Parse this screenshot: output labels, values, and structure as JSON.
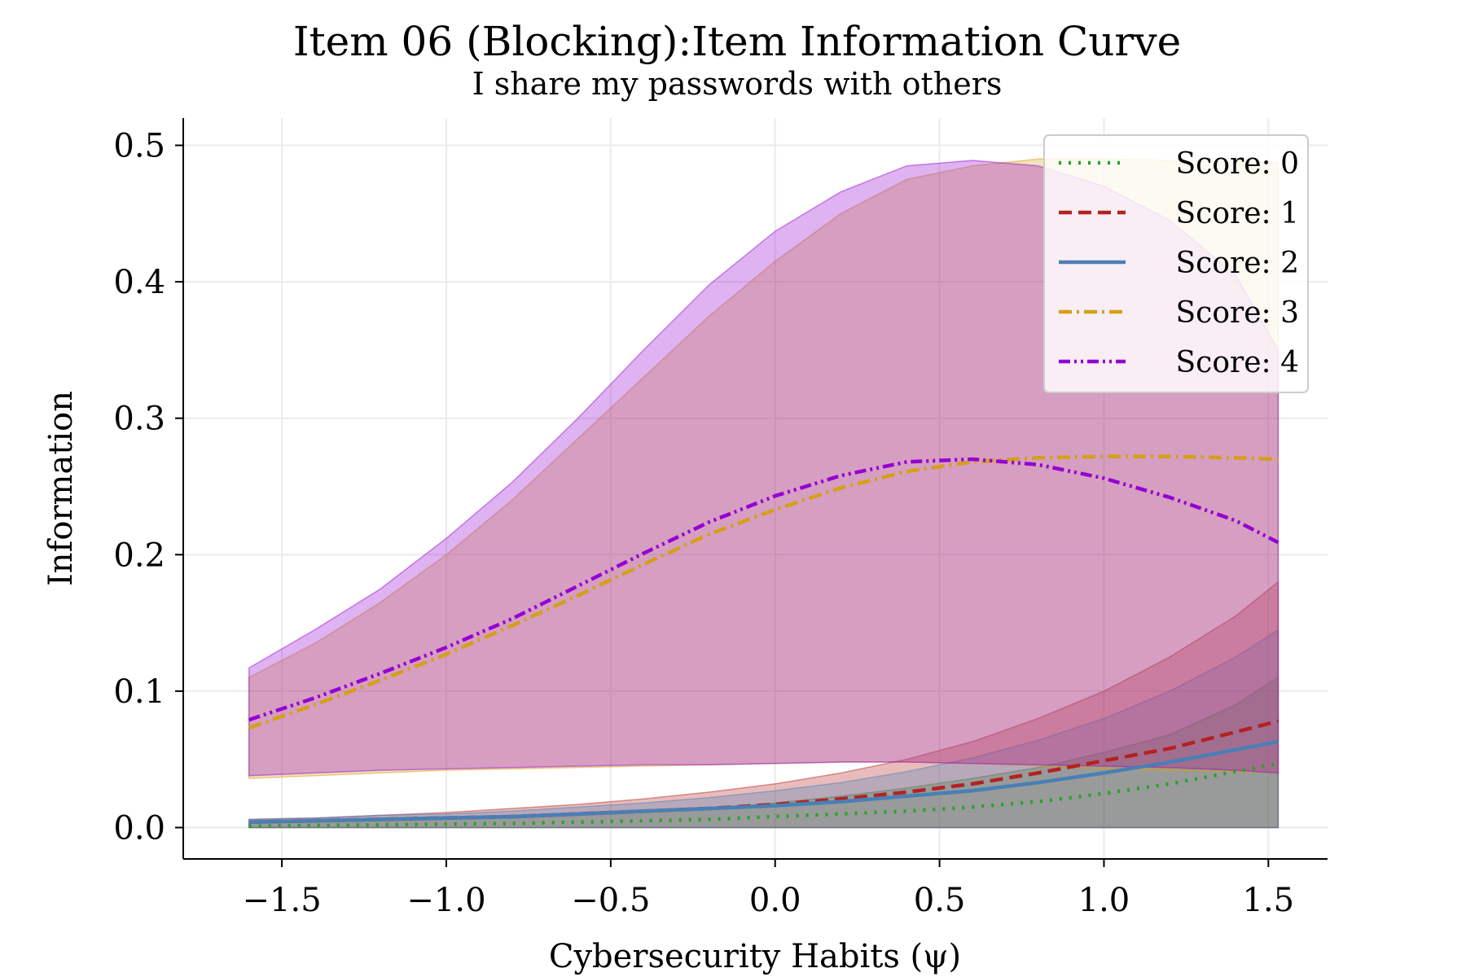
{
  "chart_data": {
    "type": "line",
    "title": "Item 06 (Blocking):Item Information Curve",
    "subtitle": "I share my passwords with others",
    "xlabel": "Cybersecurity Habits (ψ)",
    "ylabel": "Information",
    "xlim": [
      -1.8,
      1.68
    ],
    "ylim": [
      -0.023,
      0.52
    ],
    "x_ticks": [
      -1.5,
      -1.0,
      -0.5,
      0.0,
      0.5,
      1.0,
      1.5
    ],
    "x_tick_labels": [
      "−1.5",
      "−1.0",
      "−0.5",
      "0.0",
      "0.5",
      "1.0",
      "1.5"
    ],
    "y_ticks": [
      0.0,
      0.1,
      0.2,
      0.3,
      0.4,
      0.5
    ],
    "y_tick_labels": [
      "0.0",
      "0.1",
      "0.2",
      "0.3",
      "0.4",
      "0.5"
    ],
    "grid": true,
    "legend_position": "top-right",
    "x": [
      -1.6,
      -1.4,
      -1.2,
      -1.0,
      -0.8,
      -0.6,
      -0.4,
      -0.2,
      0.0,
      0.2,
      0.4,
      0.6,
      0.8,
      1.0,
      1.2,
      1.4,
      1.53
    ],
    "series": [
      {
        "name": "Score: 0",
        "color": "#2ca02c",
        "dash": "dotted",
        "values": [
          0.001,
          0.0015,
          0.002,
          0.0025,
          0.003,
          0.004,
          0.005,
          0.006,
          0.008,
          0.01,
          0.012,
          0.015,
          0.019,
          0.025,
          0.032,
          0.041,
          0.047
        ],
        "band_upper": [
          0.003,
          0.004,
          0.005,
          0.006,
          0.007,
          0.009,
          0.011,
          0.014,
          0.018,
          0.023,
          0.029,
          0.036,
          0.044,
          0.055,
          0.068,
          0.09,
          0.11
        ],
        "band_lower": [
          0,
          0,
          0,
          0,
          0,
          0,
          0,
          0,
          0,
          0,
          0,
          0,
          0,
          0,
          0,
          0,
          0
        ]
      },
      {
        "name": "Score: 1",
        "color": "#b22222",
        "dash": "dashed",
        "values": [
          0.004,
          0.005,
          0.006,
          0.007,
          0.008,
          0.01,
          0.012,
          0.014,
          0.017,
          0.021,
          0.026,
          0.032,
          0.04,
          0.049,
          0.058,
          0.07,
          0.078
        ],
        "band_upper": [
          0.006,
          0.007,
          0.009,
          0.011,
          0.014,
          0.017,
          0.021,
          0.026,
          0.032,
          0.04,
          0.05,
          0.063,
          0.08,
          0.1,
          0.125,
          0.155,
          0.18
        ],
        "band_lower": [
          0,
          0,
          0,
          0,
          0,
          0,
          0,
          0,
          0,
          0,
          0,
          0,
          0,
          0,
          0,
          0,
          0
        ]
      },
      {
        "name": "Score: 2",
        "color": "#4a7fb5",
        "dash": "solid",
        "values": [
          0.004,
          0.005,
          0.006,
          0.007,
          0.008,
          0.01,
          0.012,
          0.014,
          0.016,
          0.019,
          0.023,
          0.027,
          0.033,
          0.04,
          0.048,
          0.057,
          0.063
        ],
        "band_upper": [
          0.006,
          0.007,
          0.009,
          0.01,
          0.012,
          0.015,
          0.018,
          0.022,
          0.027,
          0.033,
          0.041,
          0.051,
          0.064,
          0.08,
          0.1,
          0.125,
          0.145
        ],
        "band_lower": [
          0,
          0,
          0,
          0,
          0,
          0,
          0,
          0,
          0,
          0,
          0,
          0,
          0,
          0,
          0,
          0,
          0
        ]
      },
      {
        "name": "Score: 3",
        "color": "#d4a017",
        "dash": "dashdot",
        "values": [
          0.073,
          0.09,
          0.108,
          0.127,
          0.148,
          0.17,
          0.193,
          0.215,
          0.233,
          0.249,
          0.261,
          0.268,
          0.271,
          0.272,
          0.272,
          0.271,
          0.27
        ],
        "band_upper": [
          0.11,
          0.135,
          0.165,
          0.2,
          0.24,
          0.285,
          0.33,
          0.375,
          0.415,
          0.45,
          0.475,
          0.485,
          0.49,
          0.49,
          0.489,
          0.488,
          0.487
        ],
        "band_lower": [
          0.036,
          0.038,
          0.04,
          0.042,
          0.043,
          0.044,
          0.045,
          0.046,
          0.047,
          0.048,
          0.048,
          0.047,
          0.045,
          0.043,
          0.042,
          0.041,
          0.04
        ]
      },
      {
        "name": "Score: 4",
        "color": "#9400d3",
        "dash": "dashdotdot",
        "values": [
          0.079,
          0.095,
          0.113,
          0.132,
          0.153,
          0.177,
          0.201,
          0.224,
          0.243,
          0.258,
          0.268,
          0.27,
          0.266,
          0.256,
          0.242,
          0.225,
          0.209
        ],
        "band_upper": [
          0.117,
          0.145,
          0.175,
          0.212,
          0.253,
          0.3,
          0.35,
          0.398,
          0.437,
          0.466,
          0.485,
          0.489,
          0.485,
          0.47,
          0.445,
          0.405,
          0.35
        ],
        "band_lower": [
          0.038,
          0.04,
          0.042,
          0.043,
          0.044,
          0.045,
          0.046,
          0.046,
          0.047,
          0.048,
          0.048,
          0.047,
          0.046,
          0.045,
          0.044,
          0.042,
          0.04
        ]
      }
    ]
  }
}
